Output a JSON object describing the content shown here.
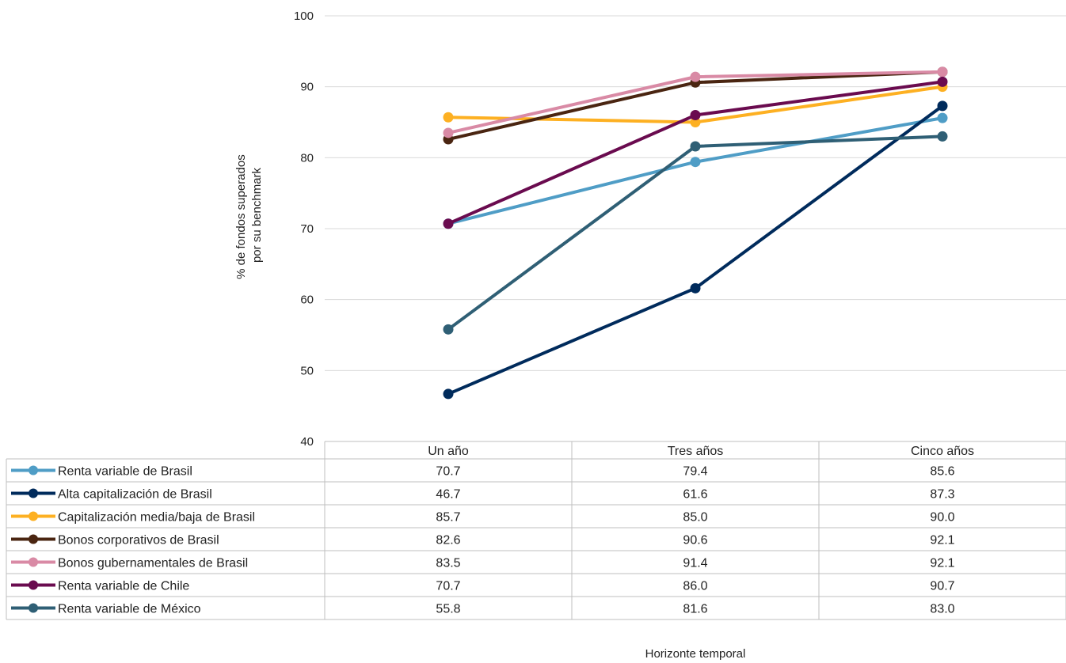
{
  "chart_data": {
    "type": "line",
    "title": "",
    "xlabel": "Horizonte temporal",
    "ylabel_lines": [
      "% de fondos superados",
      "por su benchmark"
    ],
    "ylim": [
      40,
      100
    ],
    "yticks": [
      40,
      50,
      60,
      70,
      80,
      90,
      100
    ],
    "grid": true,
    "categories": [
      "Un año",
      "Tres años",
      "Cinco años"
    ],
    "series": [
      {
        "name": "Renta variable de Brasil",
        "color": "#4f9dc6",
        "values": [
          70.7,
          79.4,
          85.6
        ]
      },
      {
        "name": "Alta capitalización de Brasil",
        "color": "#002b5c",
        "values": [
          46.7,
          61.6,
          87.3
        ]
      },
      {
        "name": "Capitalización media/baja de Brasil",
        "color": "#fdb022",
        "values": [
          85.7,
          85.0,
          90.0
        ]
      },
      {
        "name": "Bonos corporativos de Brasil",
        "color": "#4a2511",
        "values": [
          82.6,
          90.6,
          92.1
        ]
      },
      {
        "name": "Bonos gubernamentales de Brasil",
        "color": "#d98aa5",
        "values": [
          83.5,
          91.4,
          92.1
        ]
      },
      {
        "name": "Renta variable de Chile",
        "color": "#6a0b4f",
        "values": [
          70.7,
          86.0,
          90.7
        ]
      },
      {
        "name": "Renta variable de México",
        "color": "#2f5f75",
        "values": [
          55.8,
          81.6,
          83.0
        ]
      }
    ],
    "table_values": [
      [
        "70.7",
        "79.4",
        "85.6"
      ],
      [
        "46.7",
        "61.6",
        "87.3"
      ],
      [
        "85.7",
        "85.0",
        "90.0"
      ],
      [
        "82.6",
        "90.6",
        "92.1"
      ],
      [
        "83.5",
        "91.4",
        "92.1"
      ],
      [
        "70.7",
        "86.0",
        "90.7"
      ],
      [
        "55.8",
        "81.6",
        "83.0"
      ]
    ]
  }
}
